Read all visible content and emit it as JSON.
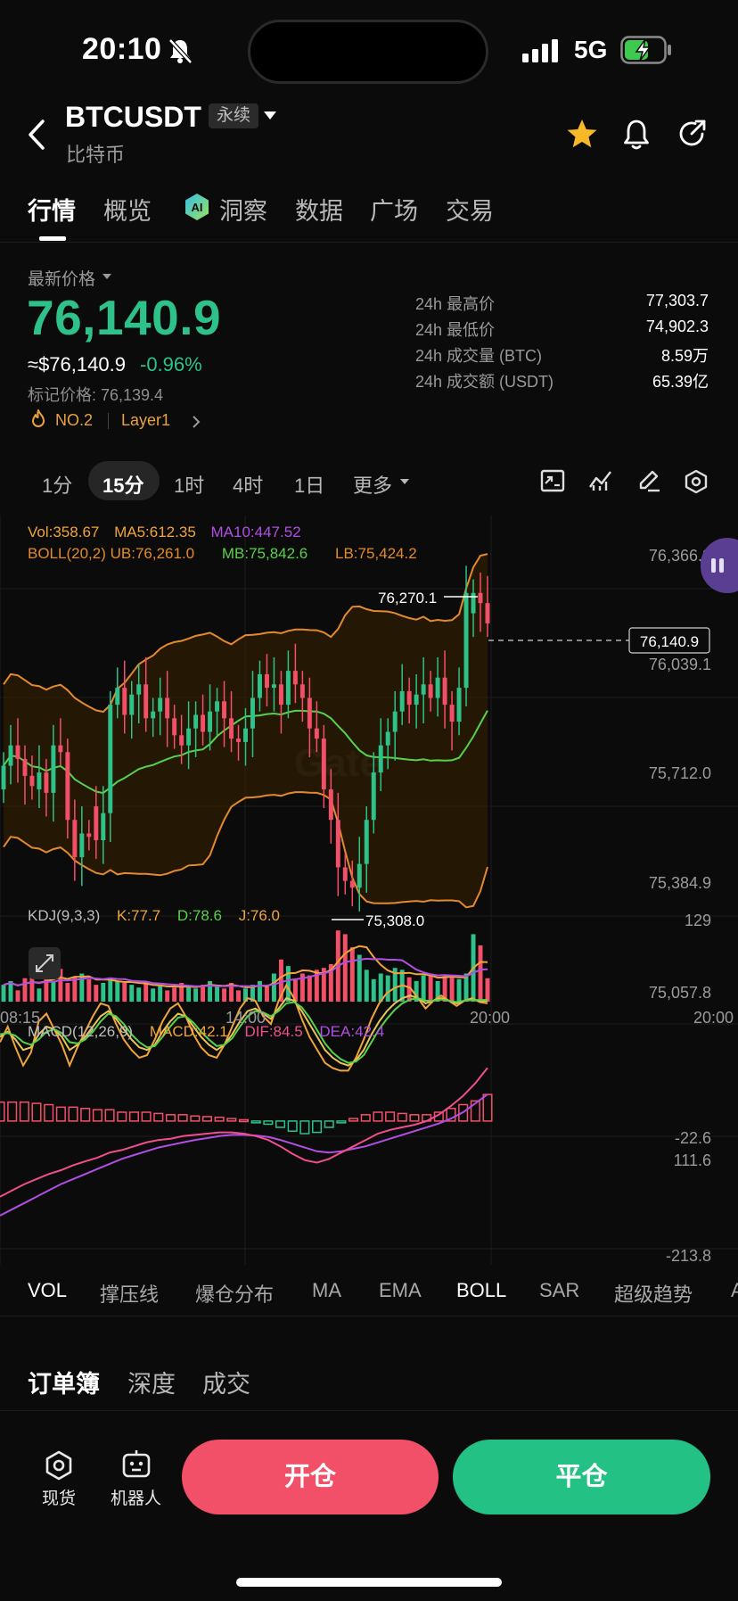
{
  "status_bar": {
    "time": "20:10",
    "network": "5G"
  },
  "header": {
    "title": "BTCUSDT",
    "badge": "永续",
    "subtitle": "比特币"
  },
  "tabs": [
    "行情",
    "概览",
    "洞察",
    "数据",
    "广场",
    "交易"
  ],
  "price": {
    "label": "最新价格",
    "last": "76,140.9",
    "usd": "≈$76,140.9",
    "change": "-0.96%",
    "mark": "标记价格: 76,139.4",
    "rank": "NO.2",
    "tag": "Layer1"
  },
  "stats": [
    {
      "label": "24h 最高价",
      "value": "77,303.7"
    },
    {
      "label": "24h 最低价",
      "value": "74,902.3"
    },
    {
      "label": "24h 成交量 (BTC)",
      "value": "8.59万"
    },
    {
      "label": "24h 成交额 (USDT)",
      "value": "65.39亿"
    }
  ],
  "intervals": [
    "1分",
    "15分",
    "1时",
    "4时",
    "1日",
    "更多"
  ],
  "chart_data": {
    "type": "candlestick",
    "interval": "15分",
    "indicators_text": {
      "vol": "Vol:358.67",
      "ma5": "MA5:612.35",
      "ma10": "MA10:447.52",
      "boll": "BOLL(20,2) UB:76,261.0",
      "boll_mb": "MB:75,842.6",
      "boll_lb": "LB:75,424.2",
      "kdj": "KDJ(9,3,3)",
      "kdj_k": "K:77.7",
      "kdj_d": "D:78.6",
      "kdj_j": "J:76.0",
      "macd": "MACD(12,26,9)",
      "macd_v": "MACD:42.1",
      "macd_dif": "DIF:84.5",
      "macd_dea": "DEA:42.4"
    },
    "y_ticks": [
      "76,366.3",
      "76,039.1",
      "75,712.0",
      "75,384.9",
      "75,057.8"
    ],
    "x_ticks": [
      "08:15",
      "14:00",
      "20:00",
      "20:00"
    ],
    "kdj_ticks": [
      "129",
      "-22.6"
    ],
    "macd_ticks": [
      "111.6",
      "-213.8"
    ],
    "high_label": "76,270.1",
    "low_label": "75,308.0",
    "current_label": "76,140.9",
    "ylim": [
      75057.8,
      76366.3
    ],
    "closes": [
      75720,
      75780,
      75740,
      75690,
      75660,
      75700,
      75640,
      75780,
      75760,
      75560,
      75450,
      75520,
      75510,
      75500,
      75580,
      75900,
      75950,
      75870,
      75930,
      75960,
      75860,
      75880,
      75920,
      75860,
      75810,
      75780,
      75830,
      75870,
      75820,
      75880,
      75910,
      75860,
      75800,
      75790,
      75830,
      75920,
      75990,
      75950,
      75960,
      75900,
      76000,
      75960,
      75920,
      75830,
      75800,
      75650,
      75560,
      75420,
      75380,
      75360,
      75430,
      75560,
      75700,
      75780,
      75820,
      75880,
      75940,
      75900,
      75930,
      75960,
      75920,
      75980,
      75900,
      75850,
      75950,
      76230,
      76230,
      76200,
      76140
    ],
    "opens": [
      75650,
      75720,
      75780,
      75740,
      75690,
      75650,
      75700,
      75640,
      75780,
      75760,
      75560,
      75450,
      75520,
      75600,
      75500,
      75580,
      75900,
      75950,
      75870,
      75930,
      75960,
      75860,
      75880,
      75920,
      75860,
      75810,
      75780,
      75830,
      75870,
      75820,
      75880,
      75910,
      75860,
      75800,
      75790,
      75830,
      75920,
      75990,
      75950,
      75960,
      75900,
      76000,
      75960,
      75920,
      75830,
      75800,
      75650,
      75560,
      75420,
      75380,
      75360,
      75430,
      75560,
      75700,
      75780,
      75820,
      75880,
      75940,
      75900,
      75930,
      75960,
      75920,
      75980,
      75900,
      75850,
      75950,
      76170,
      76230,
      76200
    ],
    "volumes": [
      18,
      22,
      12,
      25,
      28,
      14,
      30,
      22,
      35,
      20,
      26,
      30,
      24,
      18,
      20,
      25,
      22,
      20,
      18,
      15,
      22,
      14,
      18,
      12,
      15,
      20,
      16,
      14,
      18,
      22,
      16,
      14,
      20,
      12,
      14,
      18,
      22,
      16,
      30,
      45,
      38,
      24,
      30,
      28,
      34,
      36,
      40,
      76,
      72,
      58,
      50,
      34,
      24,
      30,
      28,
      36,
      34,
      26,
      22,
      28,
      30,
      22,
      28,
      26,
      24,
      30,
      72,
      60,
      25
    ],
    "kdj": {
      "k": [
        50,
        54,
        48,
        40,
        42,
        52,
        58,
        56,
        50,
        40,
        44,
        50,
        58,
        66,
        70,
        64,
        56,
        48,
        42,
        40,
        44,
        54,
        62,
        68,
        66,
        58,
        50,
        44,
        40,
        44,
        52,
        62,
        70,
        72,
        68,
        64,
        72,
        80,
        78,
        70,
        60,
        50,
        40,
        34,
        30,
        28,
        32,
        40,
        52,
        62,
        70,
        76,
        80,
        82,
        80,
        76,
        78,
        80,
        78,
        76,
        78,
        79,
        78,
        77.7
      ],
      "d": [
        52,
        53,
        51,
        46,
        44,
        48,
        54,
        56,
        53,
        46,
        45,
        48,
        54,
        62,
        68,
        66,
        60,
        52,
        46,
        42,
        43,
        50,
        58,
        65,
        66,
        61,
        54,
        48,
        43,
        44,
        49,
        58,
        66,
        70,
        69,
        66,
        70,
        76,
        77,
        73,
        65,
        55,
        45,
        38,
        33,
        30,
        31,
        36,
        46,
        56,
        64,
        71,
        76,
        79,
        80,
        78,
        78,
        79,
        78,
        77,
        78,
        78.5,
        78.6,
        78.6
      ],
      "j": [
        46,
        58,
        42,
        28,
        38,
        62,
        68,
        56,
        44,
        28,
        42,
        54,
        66,
        76,
        74,
        60,
        48,
        40,
        34,
        36,
        48,
        62,
        72,
        76,
        66,
        52,
        42,
        36,
        34,
        44,
        58,
        72,
        80,
        78,
        66,
        60,
        78,
        90,
        80,
        64,
        50,
        40,
        30,
        26,
        24,
        24,
        34,
        48,
        64,
        76,
        84,
        88,
        90,
        88,
        80,
        72,
        78,
        82,
        78,
        74,
        78,
        80,
        77,
        76.0
      ]
    },
    "macd": {
      "dif": [
        -120,
        -110,
        -100,
        -92,
        -84,
        -78,
        -70,
        -64,
        -58,
        -50,
        -46,
        -40,
        -34,
        -30,
        -28,
        -24,
        -22,
        -20,
        -18,
        -18,
        -20,
        -24,
        -30,
        -40,
        -52,
        -62,
        -66,
        -60,
        -50,
        -40,
        -30,
        -20,
        -14,
        -10,
        -6,
        0,
        10,
        24,
        40,
        60,
        84.5
      ],
      "dea": [
        -150,
        -140,
        -130,
        -120,
        -110,
        -100,
        -92,
        -84,
        -76,
        -68,
        -60,
        -54,
        -48,
        -42,
        -38,
        -34,
        -30,
        -27,
        -24,
        -22,
        -22,
        -23,
        -25,
        -30,
        -36,
        -42,
        -48,
        -50,
        -48,
        -44,
        -40,
        -34,
        -28,
        -22,
        -16,
        -10,
        -4,
        4,
        14,
        28,
        42.4
      ]
    }
  },
  "indicator_tabs": [
    "VOL",
    "撑压线",
    "爆仓分布",
    "MA",
    "EMA",
    "BOLL",
    "SAR",
    "超级趋势",
    "A"
  ],
  "orderbook_tabs": [
    "订单簿",
    "深度",
    "成交"
  ],
  "bottom": {
    "spot": "现货",
    "bot": "机器人",
    "open": "开仓",
    "close": "平仓"
  },
  "colors": {
    "up": "#2ec28a",
    "down": "#f25068",
    "accent_orange": "#e9a23b"
  }
}
